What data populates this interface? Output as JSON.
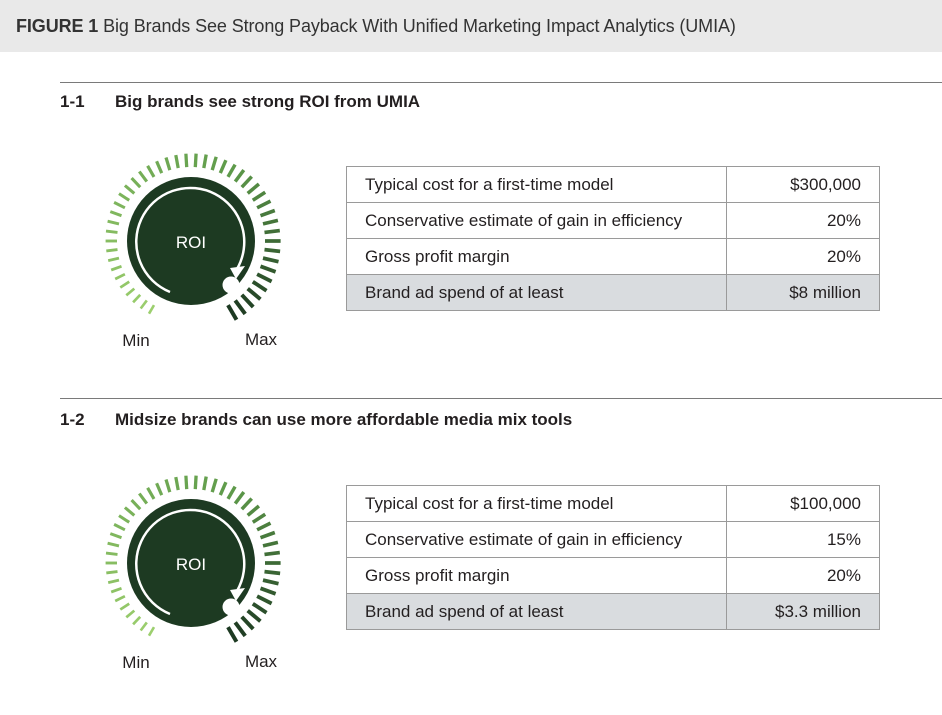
{
  "figure": {
    "label": "FIGURE 1",
    "title": "Big Brands See Strong Payback With Unified Marketing Impact Analytics (UMIA)"
  },
  "sections": [
    {
      "number": "1-1",
      "title": "Big brands see strong ROI from UMIA",
      "knob": {
        "center": "ROI",
        "min": "Min",
        "max": "Max"
      },
      "rows": [
        {
          "label": "Typical cost for a first-time model",
          "value": "$300,000"
        },
        {
          "label": "Conservative estimate of gain in efficiency",
          "value": "20%"
        },
        {
          "label": "Gross profit margin",
          "value": "20%"
        },
        {
          "label": "Brand ad spend of at least",
          "value": "$8 million"
        }
      ]
    },
    {
      "number": "1-2",
      "title": "Midsize brands can use more affordable media mix tools",
      "knob": {
        "center": "ROI",
        "min": "Min",
        "max": "Max"
      },
      "rows": [
        {
          "label": "Typical cost for a first-time model",
          "value": "$100,000"
        },
        {
          "label": "Conservative estimate of gain in efficiency",
          "value": "15%"
        },
        {
          "label": "Gross profit margin",
          "value": "20%"
        },
        {
          "label": "Brand ad spend of at least",
          "value": "$3.3 million"
        }
      ]
    }
  ],
  "colors": {
    "knob_dark": "#1d3a22",
    "tick_light": "#9ccf6e",
    "tick_mid": "#5e9a4a",
    "tick_dark": "#1d3a22",
    "highlight_row": "#d9dcdf"
  }
}
